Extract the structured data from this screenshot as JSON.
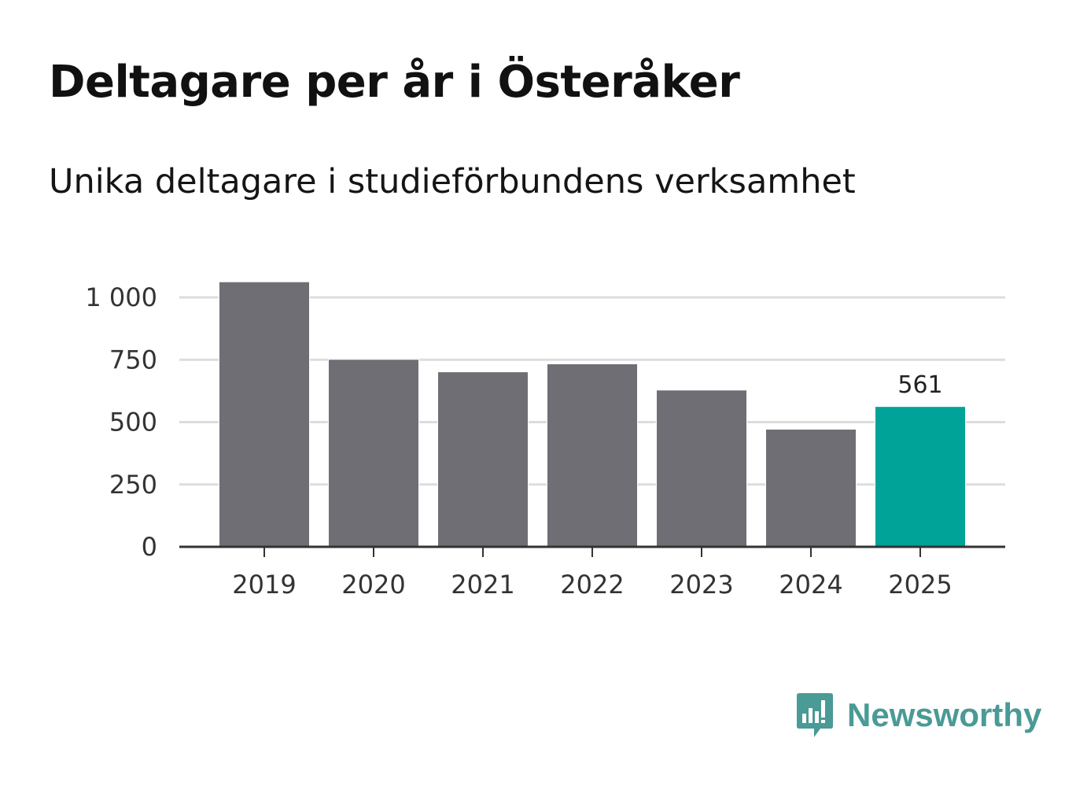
{
  "title": "Deltagare per år i Österåker",
  "subtitle": "Unika deltagare i studieförbundens verksamhet",
  "logo": {
    "text": "Newsworthy",
    "icon": "bar-chart-icon",
    "color": "#4a9a96"
  },
  "colors": {
    "bar": "#6f6e74",
    "highlight": "#00a398",
    "grid": "#dddddd",
    "axis": "#333333"
  },
  "chart_data": {
    "type": "bar",
    "title": "Deltagare per år i Österåker",
    "subtitle": "Unika deltagare i studieförbundens verksamhet",
    "xlabel": "",
    "ylabel": "",
    "categories": [
      "2019",
      "2020",
      "2021",
      "2022",
      "2023",
      "2024",
      "2025"
    ],
    "values": [
      1061,
      750,
      700,
      732,
      627,
      470,
      561
    ],
    "highlight_index": 6,
    "data_labels": [
      {
        "index": 6,
        "text": "561"
      }
    ],
    "ylim": [
      0,
      1000
    ],
    "yticks": [
      0,
      250,
      500,
      750,
      1000
    ],
    "ytick_labels": [
      "0",
      "250",
      "500",
      "750",
      "1 000"
    ],
    "grid": true
  }
}
